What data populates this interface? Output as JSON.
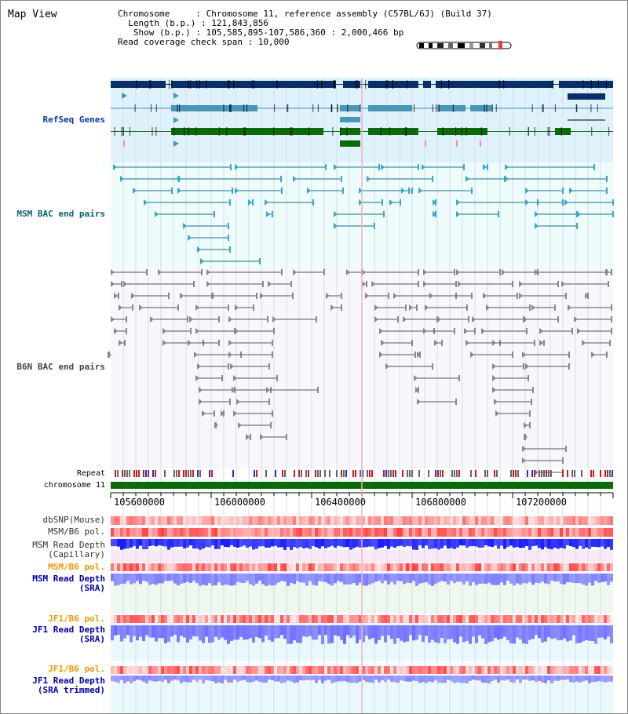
{
  "view": {
    "title": "Map View",
    "info_lines": [
      "Chromosome     : Chromosome 11, reference assembly (C57BL/6J) (Build 37)",
      "  Length (b.p.) : 121,843,856",
      "   Show (b.p.) : 105,585,895-107,586,360 : 2,000,466 bp",
      "Read coverage check span : 10,000"
    ]
  },
  "tracks": {
    "refseq": "RefSeq Genes",
    "msm_bac": "MSM BAC end pairs",
    "b6n_bac": "B6N BAC end pairs",
    "repeat": "Repeat",
    "chromosome": "chromosome 11",
    "dbsnp": "dbSNP(Mouse)",
    "msm_b6_pol": "MSM/B6 pol.",
    "msm_read_depth_cap": "MSM Read Depth\n(Capillary)",
    "msm_b6_pol2": "MSM/B6 pol.",
    "msm_read_depth_sra": "MSM Read Depth\n(SRA)",
    "jf1_b6_pol": "JF1/B6 pol.",
    "jf1_read_depth_sra": "JF1 Read Depth\n(SRA)",
    "jf1_b6_pol2": "JF1/B6 pol.",
    "jf1_read_depth_trim": "JF1 Read Depth\n(SRA trimmed)"
  },
  "axis": {
    "ticks": [
      "105600000",
      "106000000",
      "106400000",
      "106800000",
      "107200000"
    ]
  },
  "colors": {
    "refseq_bg": "#dff2fb",
    "msm_bg": "#eefcfc",
    "b6n_bg": "#f8f8fc",
    "gene_dark": "#0a2f66",
    "gene_mid": "#4a96b8",
    "gene_green": "#0b6b0b",
    "chrom_green": "#0b6b0b",
    "depth_blue": "#1a1aff",
    "depth_light": "#7b7bff",
    "snp_red": "#ff3333"
  }
}
